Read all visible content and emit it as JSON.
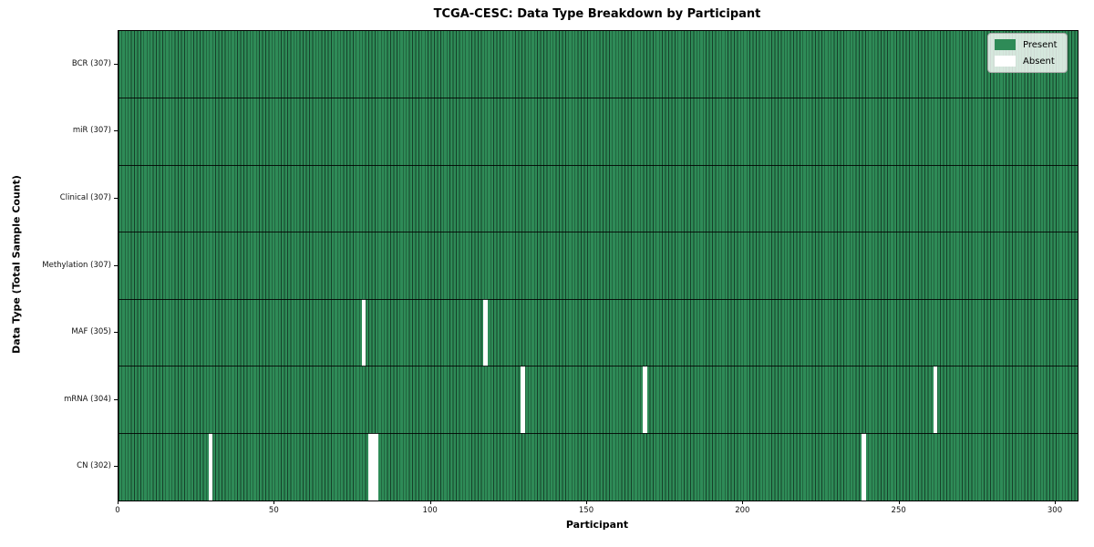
{
  "title": "TCGA-CESC: Data Type Breakdown by Participant",
  "colors": {
    "present": "#2e8b57",
    "absent": "#ffffff",
    "cell_edge": "#16412a"
  },
  "chart_data": {
    "type": "heatmap",
    "title": "TCGA-CESC: Data Type Breakdown by Participant",
    "xlabel": "Participant",
    "ylabel": "Data Type (Total Sample Count)",
    "x_range": [
      0,
      307
    ],
    "n_participants": 307,
    "x_ticks": [
      0,
      50,
      100,
      150,
      200,
      250,
      300
    ],
    "grid": false,
    "legend_position": "upper right",
    "legend": [
      {
        "label": "Present",
        "color": "#2e8b57"
      },
      {
        "label": "Absent",
        "color": "#ffffff"
      }
    ],
    "rows": [
      {
        "label": "BCR (307)",
        "data_type": "BCR",
        "total_sample_count": 307,
        "absent_participants": []
      },
      {
        "label": "miR (307)",
        "data_type": "miR",
        "total_sample_count": 307,
        "absent_participants": []
      },
      {
        "label": "Clinical (307)",
        "data_type": "Clinical",
        "total_sample_count": 307,
        "absent_participants": []
      },
      {
        "label": "Methylation (307)",
        "data_type": "Methylation",
        "total_sample_count": 307,
        "absent_participants": []
      },
      {
        "label": "MAF (305)",
        "data_type": "MAF",
        "total_sample_count": 305,
        "absent_participants": [
          78,
          117
        ]
      },
      {
        "label": "mRNA (304)",
        "data_type": "mRNA",
        "total_sample_count": 304,
        "absent_participants": [
          129,
          168,
          261
        ]
      },
      {
        "label": "CN (302)",
        "data_type": "CN",
        "total_sample_count": 302,
        "absent_participants": [
          29,
          80,
          81,
          82,
          238
        ]
      }
    ]
  }
}
